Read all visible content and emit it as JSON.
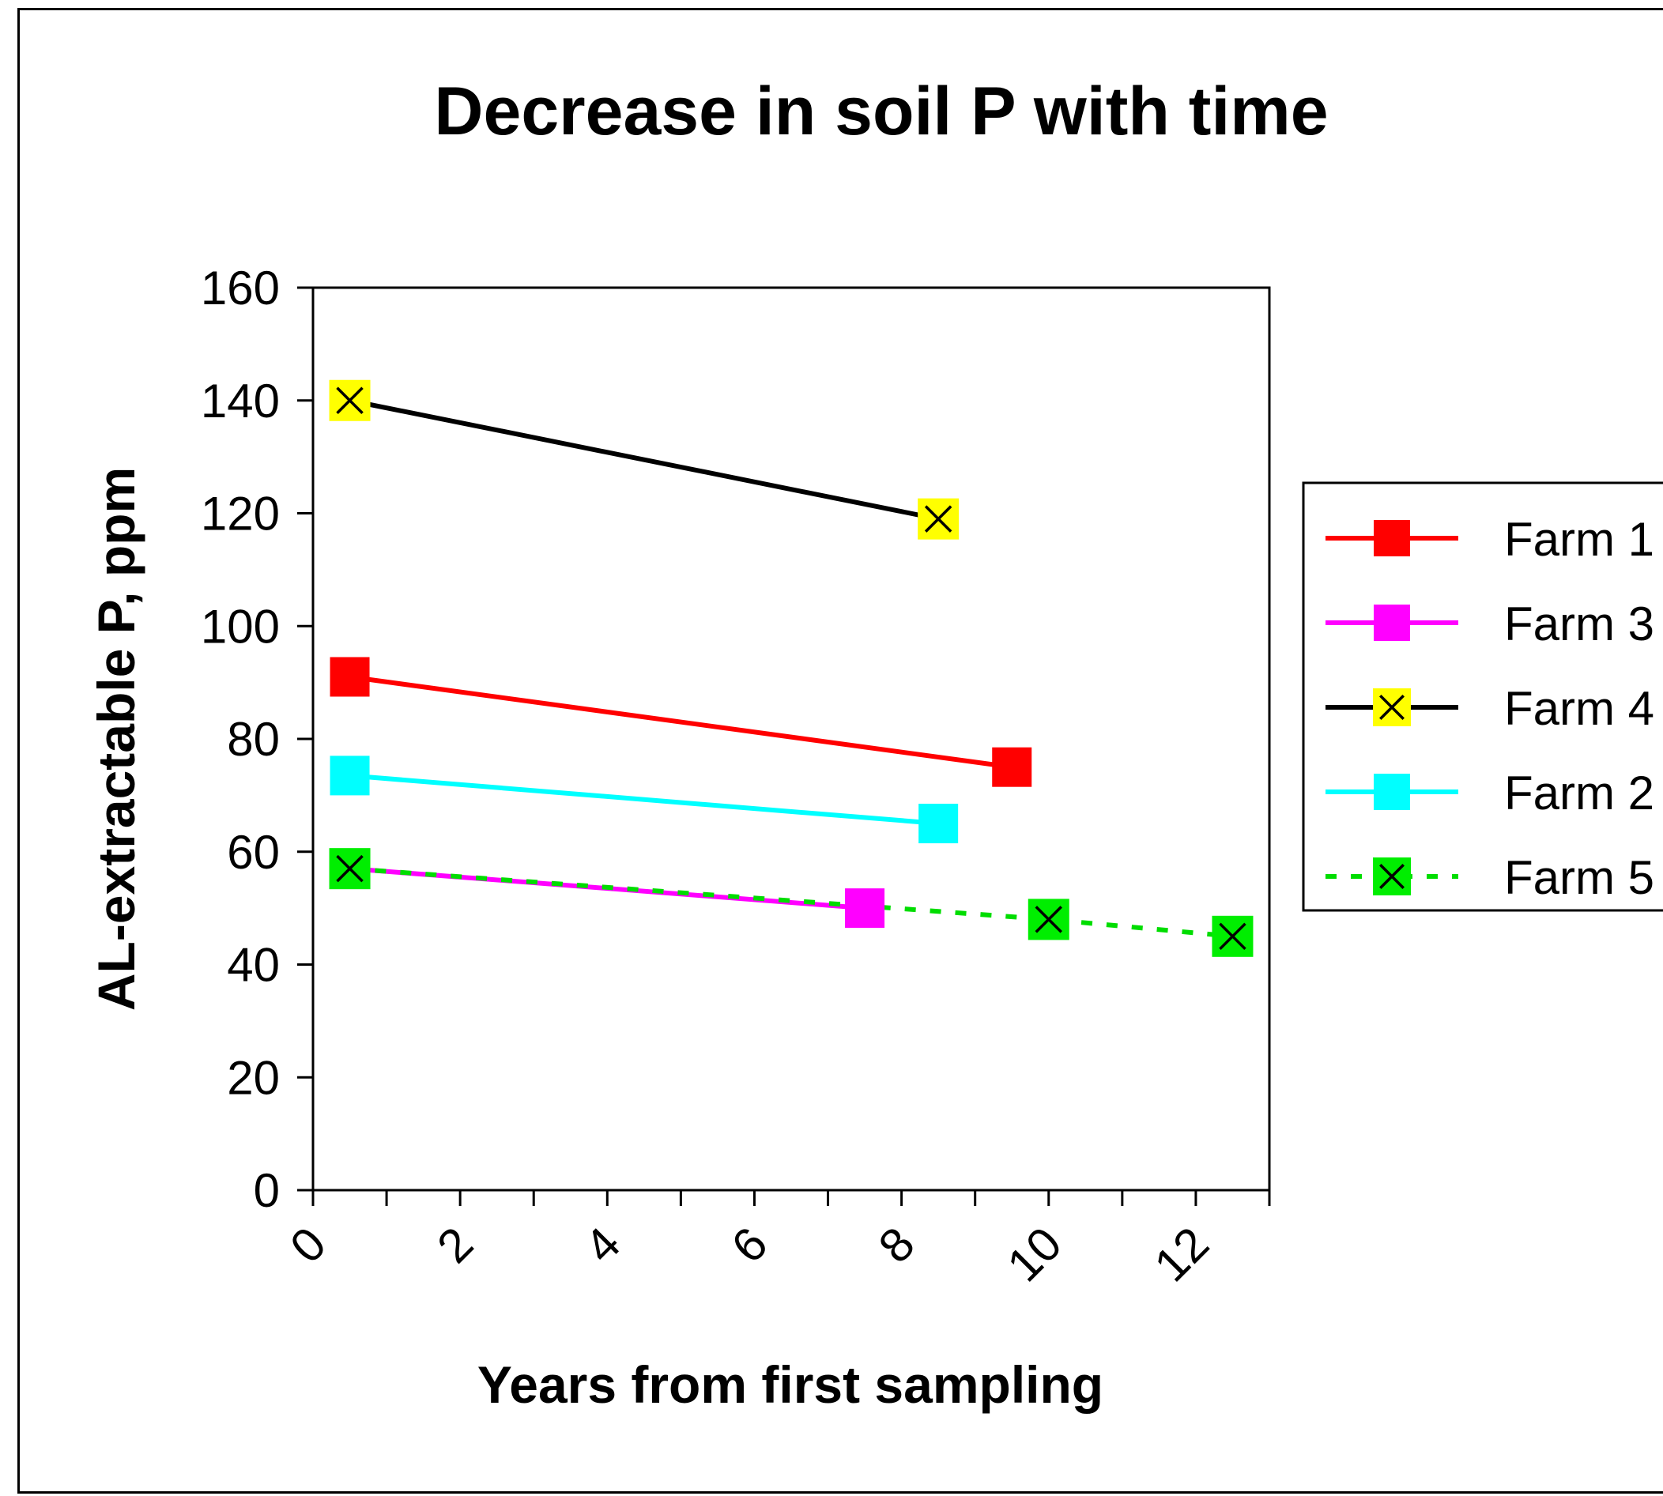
{
  "chart_data": {
    "type": "line",
    "title": "Decrease in soil P with time",
    "xlabel": "Years from first sampling",
    "ylabel": "AL-extractable P, ppm",
    "xlim": [
      0,
      13
    ],
    "ylim": [
      0,
      160
    ],
    "xticks": [
      0,
      2,
      4,
      6,
      8,
      10,
      12
    ],
    "xminor": [
      1,
      3,
      5,
      7,
      9,
      11,
      13
    ],
    "yticks": [
      0,
      20,
      40,
      60,
      80,
      100,
      120,
      140,
      160
    ],
    "grid": false,
    "legend_position": "right",
    "series": [
      {
        "name": "Farm 1",
        "color": "#ff0000",
        "line_style": "solid",
        "marker": "square",
        "marker_fill": "#ff0000",
        "points": [
          [
            0.5,
            91
          ],
          [
            9.5,
            75
          ]
        ]
      },
      {
        "name": "Farm 3",
        "color": "#ff00ff",
        "line_style": "solid",
        "marker": "square",
        "marker_fill": "#ff00ff",
        "points": [
          [
            0.5,
            57
          ],
          [
            7.5,
            50
          ]
        ]
      },
      {
        "name": "Farm 4",
        "color": "#000000",
        "line_style": "solid",
        "marker": "x-box",
        "marker_fill": "#ffff00",
        "points": [
          [
            0.5,
            140
          ],
          [
            8.5,
            119
          ]
        ]
      },
      {
        "name": "Farm 2",
        "color": "#00ffff",
        "line_style": "solid",
        "marker": "square",
        "marker_fill": "#00ffff",
        "points": [
          [
            0.5,
            73.5
          ],
          [
            8.5,
            65
          ]
        ]
      },
      {
        "name": "Farm 5",
        "color": "#00dd00",
        "line_style": "dotted",
        "marker": "x-box",
        "marker_fill": "#00ee00",
        "points": [
          [
            0.5,
            57
          ],
          [
            10,
            48
          ],
          [
            12.5,
            45
          ]
        ]
      }
    ]
  }
}
